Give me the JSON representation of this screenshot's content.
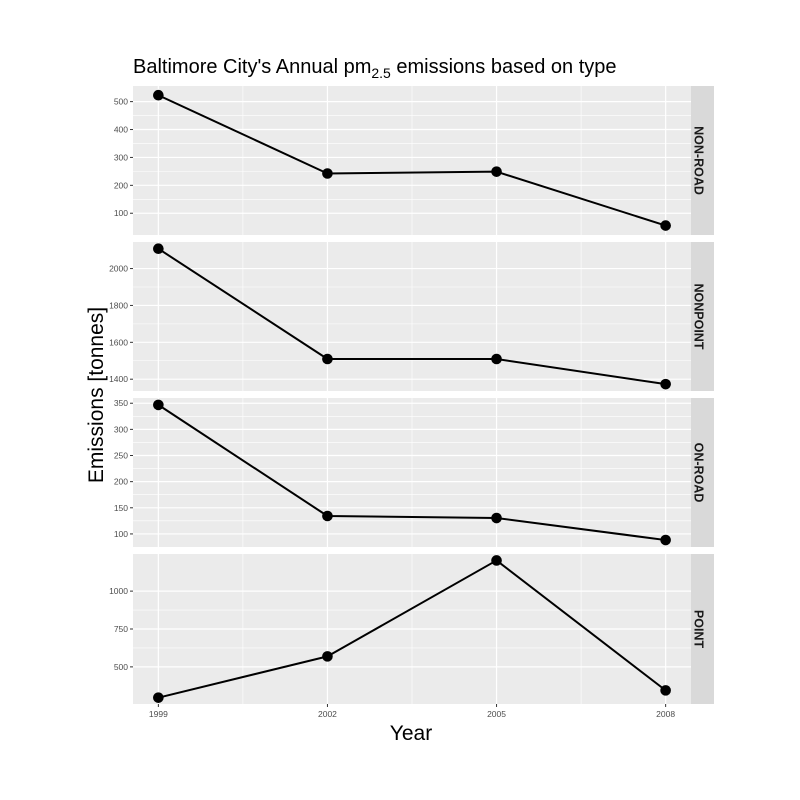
{
  "chart_data": {
    "type": "line",
    "title": {
      "prefix": "Baltimore City's Annual pm",
      "subscript": "2.5",
      "suffix": " emissions based on type"
    },
    "xlabel": "Year",
    "ylabel": "Emissions [tonnes]",
    "x": [
      1999,
      2002,
      2005,
      2008
    ],
    "x_ticks": [
      "1999",
      "2002",
      "2005",
      "2008"
    ],
    "xlim": [
      1998.55,
      2008.45
    ],
    "grid": true,
    "colors": {
      "panel": "#ebebeb",
      "grid": "#ffffff",
      "strip": "#d9d9d9",
      "line": "#000000",
      "point": "#000000"
    },
    "panels": [
      {
        "name": "NON-ROAD",
        "values": [
          522.94,
          242.41,
          248.93,
          55.82
        ],
        "ylim": [
          22,
          556
        ],
        "yticks": [
          100,
          200,
          300,
          400,
          500
        ],
        "ytick_labels": [
          "100",
          "200",
          "300",
          "400",
          "500"
        ]
      },
      {
        "name": "NONPOINT",
        "values": [
          2107.63,
          1509.5,
          1509.5,
          1373.21
        ],
        "ylim": [
          1336,
          2144
        ],
        "yticks": [
          1400,
          1600,
          1800,
          2000
        ],
        "ytick_labels": [
          "1400",
          "1600",
          "1800",
          "2000"
        ]
      },
      {
        "name": "ON-ROAD",
        "values": [
          346.82,
          134.31,
          130.43,
          88.28
        ],
        "ylim": [
          75,
          360
        ],
        "yticks": [
          100,
          150,
          200,
          250,
          300,
          350
        ],
        "ytick_labels": [
          "100",
          "150",
          "200",
          "250",
          "300",
          "350"
        ]
      },
      {
        "name": "POINT",
        "values": [
          296.8,
          569.26,
          1202.49,
          344.98
        ],
        "ylim": [
          255,
          1245
        ],
        "yticks": [
          500,
          750,
          1000
        ],
        "ytick_labels": [
          "500",
          "750",
          "1000"
        ]
      }
    ]
  }
}
